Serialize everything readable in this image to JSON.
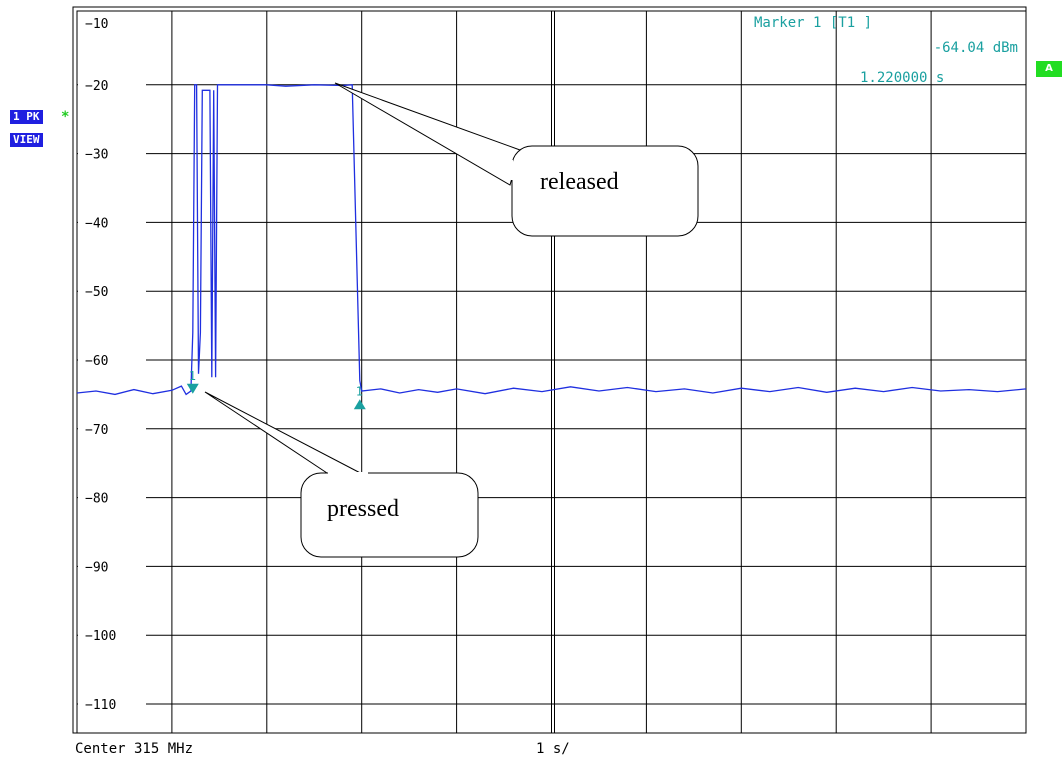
{
  "left_panel": {
    "trace_label": "1 PK",
    "trace_star": "*",
    "view_label": "VIEW"
  },
  "side_badge": "A",
  "marker": {
    "title": "Marker 1 [T1 ]",
    "level": "-64.04 dBm",
    "time": "1.220000 s",
    "marker_label": "1"
  },
  "footer": {
    "center": "Center 315 MHz",
    "sweep": "1 s/"
  },
  "callouts": {
    "released": "released",
    "pressed": "pressed"
  },
  "colors": {
    "trace": "#1f2fe0",
    "marker": "#1aa0a0",
    "grid": "#000000",
    "badge_blue": "#1f1fe0",
    "badge_green": "#22dd22"
  },
  "chart_data": {
    "type": "line",
    "title": "",
    "xlabel": "",
    "ylabel": "",
    "x_unit": "s",
    "y_unit": "dBm",
    "xlim": [
      0,
      10
    ],
    "ylim": [
      -115,
      -5
    ],
    "yticks": [
      -10,
      -20,
      -30,
      -40,
      -50,
      -60,
      -70,
      -80,
      -90,
      -100,
      -110
    ],
    "grid": true,
    "series": [
      {
        "name": "",
        "color": "#1f2fe0",
        "points": [
          [
            0.0,
            -64.8
          ],
          [
            0.2,
            -64.5
          ],
          [
            0.4,
            -65.0
          ],
          [
            0.6,
            -64.3
          ],
          [
            0.8,
            -64.9
          ],
          [
            1.0,
            -64.4
          ],
          [
            1.1,
            -63.8
          ],
          [
            1.15,
            -65.0
          ],
          [
            1.2,
            -64.5
          ],
          [
            1.22,
            -56.0
          ],
          [
            1.24,
            -20.0
          ],
          [
            1.26,
            -20.0
          ],
          [
            1.28,
            -62.0
          ],
          [
            1.3,
            -56.0
          ],
          [
            1.32,
            -20.8
          ],
          [
            1.4,
            -20.8
          ],
          [
            1.42,
            -62.5
          ],
          [
            1.44,
            -20.8
          ],
          [
            1.46,
            -62.5
          ],
          [
            1.48,
            -20.0
          ],
          [
            2.0,
            -20.0
          ],
          [
            2.2,
            -20.2
          ],
          [
            2.5,
            -20.0
          ],
          [
            2.8,
            -20.1
          ],
          [
            2.9,
            -20.0
          ],
          [
            2.98,
            -63.0
          ],
          [
            3.0,
            -64.5
          ],
          [
            3.2,
            -64.2
          ],
          [
            3.4,
            -64.8
          ],
          [
            3.6,
            -64.3
          ],
          [
            3.8,
            -64.7
          ],
          [
            4.0,
            -64.2
          ],
          [
            4.3,
            -64.9
          ],
          [
            4.6,
            -64.1
          ],
          [
            4.9,
            -64.6
          ],
          [
            5.2,
            -63.9
          ],
          [
            5.5,
            -64.5
          ],
          [
            5.8,
            -64.0
          ],
          [
            6.1,
            -64.6
          ],
          [
            6.4,
            -64.2
          ],
          [
            6.7,
            -64.8
          ],
          [
            7.0,
            -64.1
          ],
          [
            7.3,
            -64.6
          ],
          [
            7.6,
            -64.0
          ],
          [
            7.9,
            -64.7
          ],
          [
            8.2,
            -64.1
          ],
          [
            8.5,
            -64.6
          ],
          [
            8.8,
            -64.0
          ],
          [
            9.1,
            -64.5
          ],
          [
            9.4,
            -64.3
          ],
          [
            9.7,
            -64.6
          ],
          [
            10.0,
            -64.2
          ]
        ]
      }
    ],
    "markers": [
      {
        "label": "1",
        "x": 1.22,
        "y": -64.04,
        "shape": "down"
      },
      {
        "label": "1",
        "x": 2.98,
        "y": -66.0,
        "shape": "up"
      }
    ]
  }
}
